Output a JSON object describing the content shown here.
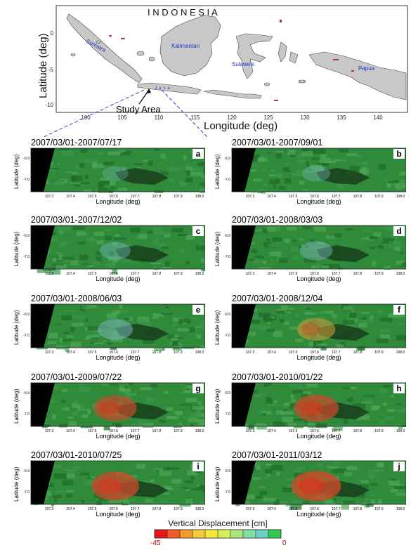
{
  "overview_map": {
    "country_label": "I N D O N E S I A",
    "ylabel": "Latitude (deg)",
    "xlabel": "Longitude (deg)",
    "x_ticks": [
      "100",
      "105",
      "110",
      "115",
      "120",
      "125",
      "130",
      "135",
      "140"
    ],
    "y_ticks": [
      "0",
      "-5",
      "-10"
    ],
    "region_labels": [
      "Sumatra",
      "Kalimantan",
      "Sulawesi",
      "Papua",
      "Java"
    ],
    "study_area_label": "Study Area",
    "colors": {
      "land": "#c8c8c8",
      "sea": "#ffffff",
      "islet_accent": "#b03060",
      "region_label": "#1a37c8",
      "study_line": "#3a3ac8"
    }
  },
  "panel_axes": {
    "ylabel": "Latitude (deg)",
    "xlabel": "Longitude (deg)",
    "x_ticks": [
      "107.3",
      "107.4",
      "107.5",
      "107.6",
      "107.7",
      "107.8",
      "107.9",
      "108.0"
    ],
    "y_ticks": [
      "-6.9",
      "-7.0"
    ]
  },
  "panels": [
    {
      "letter": "a",
      "title": "2007/03/01-2007/07/17",
      "deformation": 0.05
    },
    {
      "letter": "b",
      "title": "2007/03/01-2007/09/01",
      "deformation": 0.12
    },
    {
      "letter": "c",
      "title": "2007/03/01-2007/12/02",
      "deformation": 0.22
    },
    {
      "letter": "d",
      "title": "2007/03/01-2008/03/03",
      "deformation": 0.3
    },
    {
      "letter": "e",
      "title": "2007/03/01-2008/06/03",
      "deformation": 0.4
    },
    {
      "letter": "f",
      "title": "2007/03/01-2008/12/04",
      "deformation": 0.52
    },
    {
      "letter": "g",
      "title": "2007/03/01-2009/07/22",
      "deformation": 0.7
    },
    {
      "letter": "h",
      "title": "2007/03/01-2010/01/22",
      "deformation": 0.78
    },
    {
      "letter": "i",
      "title": "2007/03/01-2010/07/25",
      "deformation": 0.88
    },
    {
      "letter": "j",
      "title": "2007/03/01-2011/03/12",
      "deformation": 0.96
    }
  ],
  "colorbar": {
    "title": "Vertical Displacement  [cm]",
    "min_label": "-45",
    "max_label": "0",
    "colors": [
      "#e8141c",
      "#f05a28",
      "#f39a2c",
      "#f6c83a",
      "#f2ea3c",
      "#d4ee5c",
      "#a8e67a",
      "#86dca6",
      "#6cd2c6",
      "#2ec84c"
    ]
  }
}
